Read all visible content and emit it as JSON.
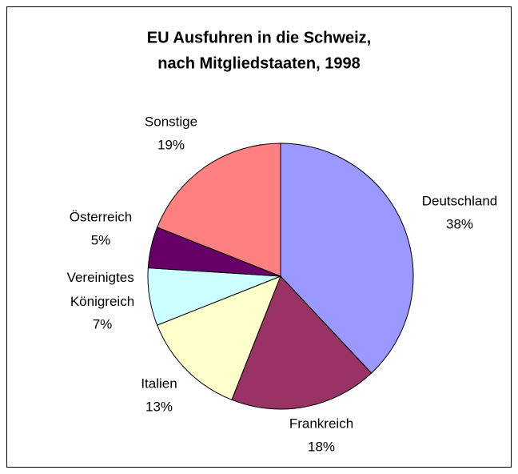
{
  "chart_data": {
    "type": "pie",
    "title": [
      "EU Ausfuhren in die Schweiz,",
      "nach Mitgliedstaaten, 1998"
    ],
    "categories": [
      "Deutschland",
      "Frankreich",
      "Italien",
      "Vereinigtes Königreich",
      "Österreich",
      "Sonstige"
    ],
    "values": [
      38,
      18,
      13,
      7,
      5,
      19
    ],
    "value_labels": [
      "38%",
      "18%",
      "13%",
      "7%",
      "5%",
      "19%"
    ],
    "colors": [
      "#9999ff",
      "#993366",
      "#ffffcc",
      "#ccffff",
      "#660066",
      "#ff8080"
    ]
  }
}
